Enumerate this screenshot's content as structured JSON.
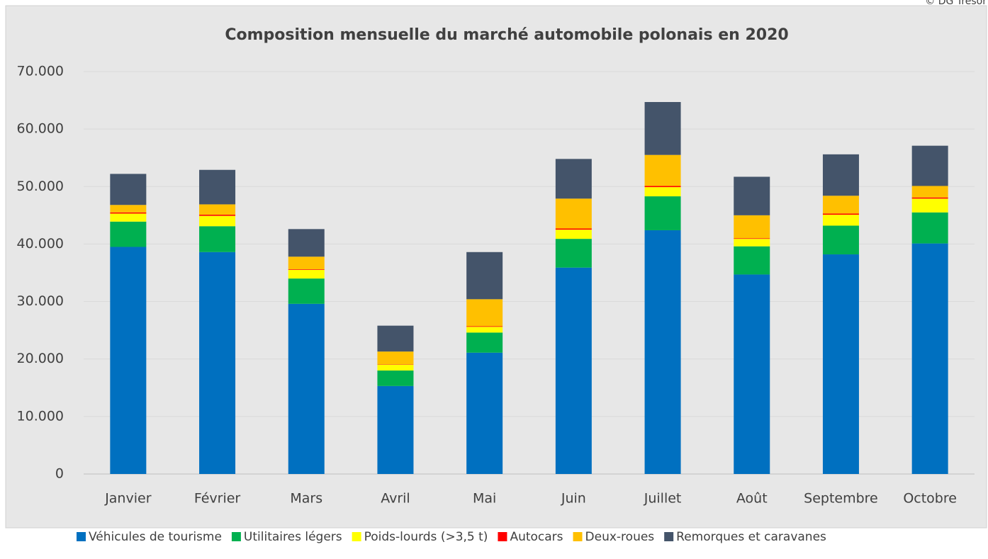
{
  "chart_data": {
    "type": "stacked_bar",
    "title": "Composition mensuelle du marché automobile polonais en 2020",
    "watermark": "© DG Trésor",
    "categories": [
      "Janvier",
      "Février",
      "Mars",
      "Avril",
      "Mai",
      "Juin",
      "Juillet",
      "Août",
      "Septembre",
      "Octobre"
    ],
    "series": [
      {
        "name": "Véhicules de tourisme",
        "color": "#0070c0",
        "values": [
          39500,
          38600,
          29600,
          15300,
          21100,
          35900,
          42400,
          34700,
          38200,
          40100
        ]
      },
      {
        "name": "Utilitaires légers",
        "color": "#00b050",
        "values": [
          4400,
          4500,
          4400,
          2700,
          3500,
          5000,
          5900,
          4900,
          5000,
          5400
        ]
      },
      {
        "name": "Poids-lourds (>3,5 t)",
        "color": "#ffff00",
        "values": [
          1400,
          1800,
          1500,
          1000,
          1000,
          1600,
          1600,
          1300,
          1900,
          2400
        ]
      },
      {
        "name": "Autocars",
        "color": "#ff0000",
        "values": [
          200,
          200,
          100,
          50,
          100,
          200,
          200,
          100,
          200,
          200
        ]
      },
      {
        "name": "Deux-roues",
        "color": "#ffc000",
        "values": [
          1300,
          1800,
          2200,
          2250,
          4700,
          5200,
          5400,
          4000,
          3100,
          2000
        ]
      },
      {
        "name": "Remorques et caravanes",
        "color": "#44546a",
        "values": [
          5400,
          6000,
          4800,
          4500,
          8200,
          6900,
          9200,
          6700,
          7200,
          7000
        ]
      }
    ],
    "ylim": [
      0,
      70000
    ],
    "yticks": [
      0,
      {
        "value": 10000,
        "label": "10.000"
      },
      {
        "value": 20000,
        "label": "20.000"
      },
      {
        "value": 30000,
        "label": "30.000"
      },
      {
        "value": 40000,
        "label": "40.000"
      },
      {
        "value": 50000,
        "label": "50.000"
      },
      {
        "value": 60000,
        "label": "60.000"
      },
      {
        "value": 70000,
        "label": "70.000"
      }
    ],
    "grid": true,
    "legend": "bottom"
  }
}
